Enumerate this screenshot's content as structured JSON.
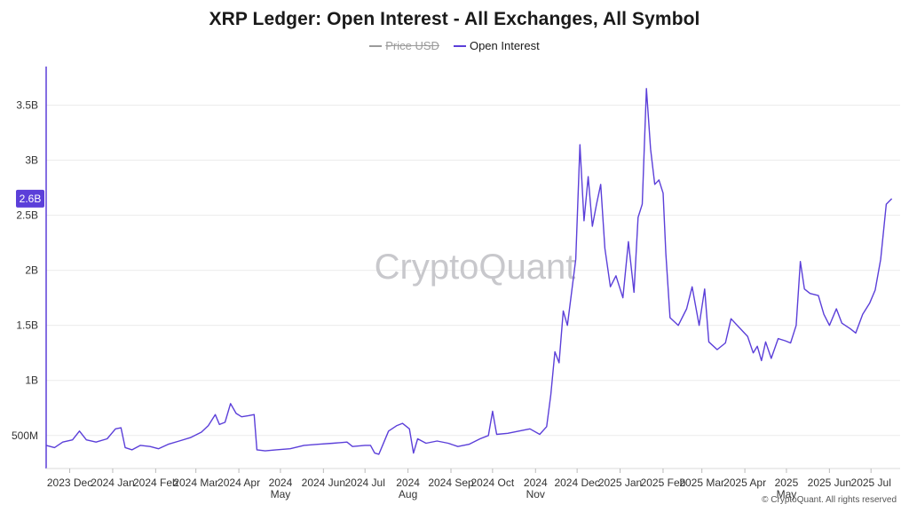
{
  "title": "XRP Ledger: Open Interest - All Exchanges, All Symbol",
  "legend": [
    {
      "label": "Price USD",
      "color": "#9a9a9a",
      "hidden": true
    },
    {
      "label": "Open Interest",
      "color": "#5b3fd9",
      "hidden": false
    }
  ],
  "watermark": "CryptoQuant",
  "credit": "© CryptoQuant. All rights reserved",
  "current_value_label": "2.6B",
  "chart_data": {
    "type": "line",
    "title": "XRP Ledger: Open Interest - All Exchanges, All Symbol",
    "xlabel": "",
    "ylabel": "",
    "ylim": [
      200000000,
      3850000000
    ],
    "y_ticks": [
      {
        "value": 500000000,
        "label": "500M"
      },
      {
        "value": 1000000000,
        "label": "1B"
      },
      {
        "value": 1500000000,
        "label": "1.5B"
      },
      {
        "value": 2000000000,
        "label": "2B"
      },
      {
        "value": 2500000000,
        "label": "2.5B"
      },
      {
        "value": 3000000000,
        "label": "3B"
      },
      {
        "value": 3500000000,
        "label": "3.5B"
      }
    ],
    "x_range": [
      "2023-11-14",
      "2025-07-22"
    ],
    "x_ticks": [
      {
        "date": "2023-12-01",
        "label": "2023 Dec"
      },
      {
        "date": "2024-01-01",
        "label": "2024 Jan"
      },
      {
        "date": "2024-02-01",
        "label": "2024 Feb"
      },
      {
        "date": "2024-03-01",
        "label": "2024 Mar"
      },
      {
        "date": "2024-04-01",
        "label": "2024 Apr"
      },
      {
        "date": "2024-05-01",
        "label": "2024 May"
      },
      {
        "date": "2024-06-01",
        "label": "2024 Jun"
      },
      {
        "date": "2024-07-01",
        "label": "2024 Jul"
      },
      {
        "date": "2024-08-01",
        "label": "2024 Aug"
      },
      {
        "date": "2024-09-01",
        "label": "2024 Sep"
      },
      {
        "date": "2024-10-01",
        "label": "2024 Oct"
      },
      {
        "date": "2024-11-01",
        "label": "2024 Nov"
      },
      {
        "date": "2024-12-01",
        "label": "2024 Dec"
      },
      {
        "date": "2025-01-01",
        "label": "2025 Jan"
      },
      {
        "date": "2025-02-01",
        "label": "2025 Feb"
      },
      {
        "date": "2025-03-01",
        "label": "2025 Mar"
      },
      {
        "date": "2025-04-01",
        "label": "2025 Apr"
      },
      {
        "date": "2025-05-01",
        "label": "2025 May"
      },
      {
        "date": "2025-06-01",
        "label": "2025 Jun"
      },
      {
        "date": "2025-07-01",
        "label": "2025 Jul"
      }
    ],
    "grid": true,
    "series": [
      {
        "name": "Open Interest",
        "color": "#5b3fd9",
        "points": [
          [
            "2023-11-14",
            410000000
          ],
          [
            "2023-11-20",
            390000000
          ],
          [
            "2023-11-26",
            440000000
          ],
          [
            "2023-12-03",
            460000000
          ],
          [
            "2023-12-08",
            540000000
          ],
          [
            "2023-12-13",
            460000000
          ],
          [
            "2023-12-20",
            440000000
          ],
          [
            "2023-12-28",
            470000000
          ],
          [
            "2024-01-03",
            560000000
          ],
          [
            "2024-01-07",
            570000000
          ],
          [
            "2024-01-10",
            390000000
          ],
          [
            "2024-01-15",
            370000000
          ],
          [
            "2024-01-21",
            410000000
          ],
          [
            "2024-01-28",
            400000000
          ],
          [
            "2024-02-03",
            380000000
          ],
          [
            "2024-02-10",
            420000000
          ],
          [
            "2024-02-18",
            450000000
          ],
          [
            "2024-02-26",
            480000000
          ],
          [
            "2024-03-05",
            530000000
          ],
          [
            "2024-03-10",
            590000000
          ],
          [
            "2024-03-15",
            690000000
          ],
          [
            "2024-03-18",
            600000000
          ],
          [
            "2024-03-22",
            620000000
          ],
          [
            "2024-03-26",
            790000000
          ],
          [
            "2024-03-30",
            700000000
          ],
          [
            "2024-04-03",
            670000000
          ],
          [
            "2024-04-08",
            680000000
          ],
          [
            "2024-04-12",
            690000000
          ],
          [
            "2024-04-14",
            370000000
          ],
          [
            "2024-04-20",
            360000000
          ],
          [
            "2024-04-28",
            370000000
          ],
          [
            "2024-05-08",
            380000000
          ],
          [
            "2024-05-18",
            410000000
          ],
          [
            "2024-05-28",
            420000000
          ],
          [
            "2024-06-08",
            430000000
          ],
          [
            "2024-06-18",
            440000000
          ],
          [
            "2024-06-22",
            400000000
          ],
          [
            "2024-07-01",
            410000000
          ],
          [
            "2024-07-05",
            410000000
          ],
          [
            "2024-07-08",
            340000000
          ],
          [
            "2024-07-11",
            330000000
          ],
          [
            "2024-07-14",
            420000000
          ],
          [
            "2024-07-18",
            540000000
          ],
          [
            "2024-07-24",
            590000000
          ],
          [
            "2024-07-28",
            610000000
          ],
          [
            "2024-08-02",
            560000000
          ],
          [
            "2024-08-05",
            340000000
          ],
          [
            "2024-08-08",
            470000000
          ],
          [
            "2024-08-14",
            430000000
          ],
          [
            "2024-08-22",
            450000000
          ],
          [
            "2024-08-30",
            430000000
          ],
          [
            "2024-09-06",
            400000000
          ],
          [
            "2024-09-14",
            420000000
          ],
          [
            "2024-09-22",
            470000000
          ],
          [
            "2024-09-28",
            500000000
          ],
          [
            "2024-10-01",
            720000000
          ],
          [
            "2024-10-04",
            510000000
          ],
          [
            "2024-10-12",
            520000000
          ],
          [
            "2024-10-20",
            540000000
          ],
          [
            "2024-10-28",
            560000000
          ],
          [
            "2024-11-04",
            510000000
          ],
          [
            "2024-11-09",
            580000000
          ],
          [
            "2024-11-12",
            870000000
          ],
          [
            "2024-11-15",
            1260000000
          ],
          [
            "2024-11-18",
            1160000000
          ],
          [
            "2024-11-21",
            1630000000
          ],
          [
            "2024-11-24",
            1500000000
          ],
          [
            "2024-11-27",
            1800000000
          ],
          [
            "2024-11-30",
            2100000000
          ],
          [
            "2024-12-03",
            3140000000
          ],
          [
            "2024-12-06",
            2450000000
          ],
          [
            "2024-12-09",
            2850000000
          ],
          [
            "2024-12-12",
            2400000000
          ],
          [
            "2024-12-15",
            2600000000
          ],
          [
            "2024-12-18",
            2780000000
          ],
          [
            "2024-12-21",
            2200000000
          ],
          [
            "2024-12-25",
            1850000000
          ],
          [
            "2024-12-29",
            1950000000
          ],
          [
            "2025-01-03",
            1750000000
          ],
          [
            "2025-01-07",
            2260000000
          ],
          [
            "2025-01-11",
            1800000000
          ],
          [
            "2025-01-14",
            2480000000
          ],
          [
            "2025-01-17",
            2600000000
          ],
          [
            "2025-01-20",
            3650000000
          ],
          [
            "2025-01-23",
            3100000000
          ],
          [
            "2025-01-26",
            2780000000
          ],
          [
            "2025-01-29",
            2820000000
          ],
          [
            "2025-02-01",
            2700000000
          ],
          [
            "2025-02-03",
            2150000000
          ],
          [
            "2025-02-06",
            1570000000
          ],
          [
            "2025-02-12",
            1500000000
          ],
          [
            "2025-02-18",
            1650000000
          ],
          [
            "2025-02-22",
            1850000000
          ],
          [
            "2025-02-27",
            1500000000
          ],
          [
            "2025-03-03",
            1830000000
          ],
          [
            "2025-03-06",
            1350000000
          ],
          [
            "2025-03-12",
            1280000000
          ],
          [
            "2025-03-18",
            1340000000
          ],
          [
            "2025-03-22",
            1560000000
          ],
          [
            "2025-03-28",
            1480000000
          ],
          [
            "2025-04-03",
            1400000000
          ],
          [
            "2025-04-07",
            1250000000
          ],
          [
            "2025-04-10",
            1310000000
          ],
          [
            "2025-04-13",
            1180000000
          ],
          [
            "2025-04-16",
            1350000000
          ],
          [
            "2025-04-20",
            1200000000
          ],
          [
            "2025-04-25",
            1380000000
          ],
          [
            "2025-04-30",
            1360000000
          ],
          [
            "2025-05-04",
            1340000000
          ],
          [
            "2025-05-08",
            1500000000
          ],
          [
            "2025-05-11",
            2080000000
          ],
          [
            "2025-05-14",
            1830000000
          ],
          [
            "2025-05-18",
            1790000000
          ],
          [
            "2025-05-24",
            1770000000
          ],
          [
            "2025-05-28",
            1600000000
          ],
          [
            "2025-06-01",
            1500000000
          ],
          [
            "2025-06-06",
            1650000000
          ],
          [
            "2025-06-10",
            1520000000
          ],
          [
            "2025-06-16",
            1470000000
          ],
          [
            "2025-06-20",
            1430000000
          ],
          [
            "2025-06-25",
            1600000000
          ],
          [
            "2025-06-30",
            1700000000
          ],
          [
            "2025-07-04",
            1820000000
          ],
          [
            "2025-07-08",
            2100000000
          ],
          [
            "2025-07-12",
            2600000000
          ],
          [
            "2025-07-16",
            2650000000
          ]
        ]
      }
    ]
  }
}
